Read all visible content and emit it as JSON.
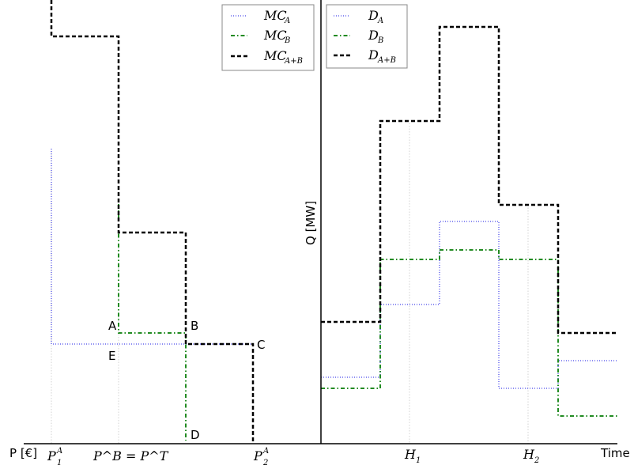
{
  "chart_data": [
    {
      "type": "line",
      "panel": "left",
      "step": true,
      "x_axis_label": "P [€]",
      "tick_labels": [
        {
          "name": "p1a",
          "base": "P",
          "sub": "1",
          "sup": "A"
        },
        {
          "name": "pb-eq-pt",
          "text": "P^B = P^T"
        },
        {
          "name": "p2a",
          "base": "P",
          "sub": "2",
          "sup": "A"
        }
      ],
      "series": [
        {
          "name": "MC_A",
          "color": "#6666ee",
          "style": "dotted",
          "points": [
            [
              1,
              3.0
            ],
            [
              1,
              0.97
            ],
            [
              3.5,
              0.97
            ]
          ]
        },
        {
          "name": "MC_B",
          "color": "#228b22",
          "style": "dashdot",
          "points": [
            [
              2.0,
              2.35
            ],
            [
              2.0,
              1.08
            ],
            [
              3.0,
              1.08
            ],
            [
              3.0,
              0.03
            ]
          ]
        },
        {
          "name": "MC_{A+B}",
          "color": "#000000",
          "style": "dashed",
          "points": [
            [
              1,
              4.5
            ],
            [
              1,
              4.2
            ],
            [
              2.0,
              4.2
            ],
            [
              2.0,
              2.2
            ],
            [
              3.0,
              2.2
            ],
            [
              3.0,
              0.97
            ],
            [
              4.0,
              0.97
            ],
            [
              4.0,
              0.0
            ]
          ]
        }
      ],
      "point_labels": [
        "A",
        "B",
        "C",
        "D",
        "E"
      ],
      "legend": {
        "position": "top-right",
        "entries": [
          {
            "base": "MC",
            "sub": "A"
          },
          {
            "base": "MC",
            "sub": "B"
          },
          {
            "base": "MC",
            "sub": "A+B"
          }
        ]
      }
    },
    {
      "type": "line",
      "panel": "right",
      "step": true,
      "y_axis_label": "Q [MW]",
      "x_axis_label": "Time",
      "tick_labels": [
        {
          "name": "h1",
          "base": "H",
          "sub": "1"
        },
        {
          "name": "h2",
          "base": "H",
          "sub": "2"
        }
      ],
      "series": [
        {
          "name": "D_A",
          "color": "#6666ee",
          "style": "dotted",
          "steps": [
            [
              0,
              1.6
            ],
            [
              1,
              1.6
            ],
            [
              1,
              2.05
            ],
            [
              2,
              2.05
            ],
            [
              2,
              3.0
            ],
            [
              3,
              3.0
            ],
            [
              3,
              0.85
            ],
            [
              4,
              0.85
            ],
            [
              4,
              1.3
            ],
            [
              5,
              1.3
            ]
          ]
        },
        {
          "name": "D_B",
          "color": "#228b22",
          "style": "dashdot",
          "steps": [
            [
              0,
              0.85
            ],
            [
              1,
              0.85
            ],
            [
              1,
              2.7
            ],
            [
              2,
              2.7
            ],
            [
              2,
              2.95
            ],
            [
              3,
              2.95
            ],
            [
              3,
              2.7
            ],
            [
              4,
              2.7
            ],
            [
              4,
              0.45
            ],
            [
              5,
              0.45
            ]
          ]
        },
        {
          "name": "D_{A+B}",
          "color": "#000000",
          "style": "dashed",
          "steps": [
            [
              0,
              1.9
            ],
            [
              1,
              1.9
            ],
            [
              1,
              4.5
            ],
            [
              2,
              4.5
            ],
            [
              2,
              5.9
            ],
            [
              3,
              5.9
            ],
            [
              3,
              3.25
            ],
            [
              4,
              3.25
            ],
            [
              4,
              1.55
            ],
            [
              5,
              1.55
            ]
          ]
        }
      ],
      "legend": {
        "position": "top-left",
        "entries": [
          {
            "base": "D",
            "sub": "A"
          },
          {
            "base": "D",
            "sub": "B"
          },
          {
            "base": "D",
            "sub": "A+B"
          }
        ]
      }
    }
  ]
}
